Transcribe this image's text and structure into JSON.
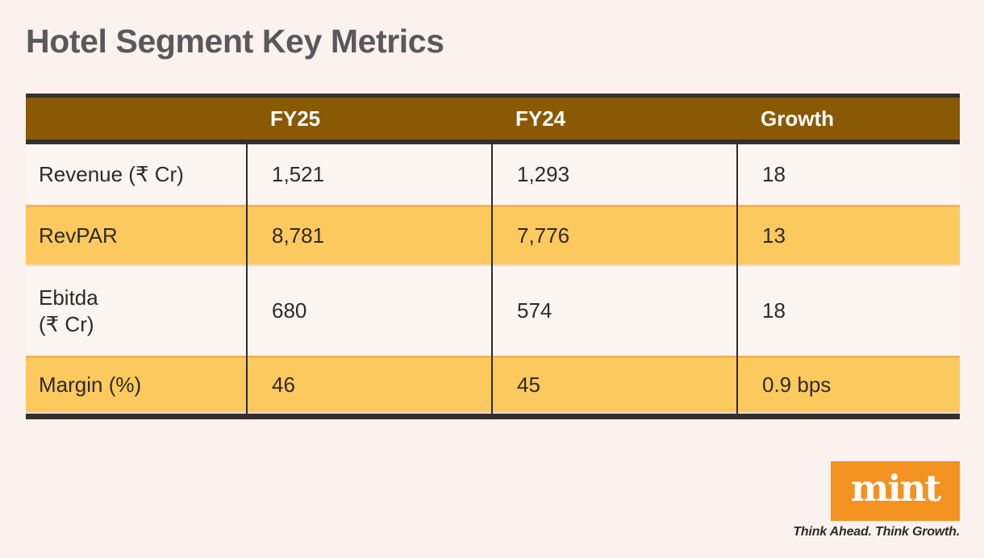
{
  "page": {
    "title": "Hotel Segment Key Metrics"
  },
  "colors": {
    "background": "#FBF1EE",
    "title_text": "#59595B",
    "header_bg": "#8A5903",
    "header_text": "#FFFFFF",
    "plain_row_bg": "#FDF5F2",
    "highlight_row_bg": "#FCC95E",
    "table_border": "#33302E",
    "column_divider": "#2E2B29",
    "body_text": "#2E2A28",
    "logo_bg": "#F3921F",
    "logo_text_color": "#FFFFFF"
  },
  "table": {
    "columns": [
      "",
      "FY25",
      "FY24",
      "Growth"
    ],
    "rows": [
      {
        "label": "Revenue (₹ Cr)",
        "label_line2": "",
        "fy25": "1,521",
        "fy24": "1,293",
        "growth": "18",
        "highlighted": false
      },
      {
        "label": "RevPAR",
        "label_line2": "",
        "fy25": "8,781",
        "fy24": "7,776",
        "growth": "13",
        "highlighted": true
      },
      {
        "label": "Ebitda",
        "label_line2": "(₹ Cr)",
        "fy25": "680",
        "fy24": "574",
        "growth": "18",
        "highlighted": false
      },
      {
        "label": "Margin (%)",
        "label_line2": "",
        "fy25": "46",
        "fy24": "45",
        "growth": "0.9 bps",
        "highlighted": true
      }
    ]
  },
  "chart_data": {
    "type": "table",
    "title": "Hotel Segment Key Metrics",
    "columns": [
      "",
      "FY25",
      "FY24",
      "Growth"
    ],
    "rows": [
      [
        "Revenue (₹ Cr)",
        "1,521",
        "1,293",
        "18"
      ],
      [
        "RevPAR",
        "8,781",
        "7,776",
        "13"
      ],
      [
        "Ebitda (₹ Cr)",
        "680",
        "574",
        "18"
      ],
      [
        "Margin (%)",
        "46",
        "45",
        "0.9 bps"
      ]
    ],
    "highlighted_rows": [
      "RevPAR",
      "Margin (%)"
    ]
  },
  "footer": {
    "logo_text": "mint",
    "tagline": "Think Ahead. Think Growth."
  }
}
